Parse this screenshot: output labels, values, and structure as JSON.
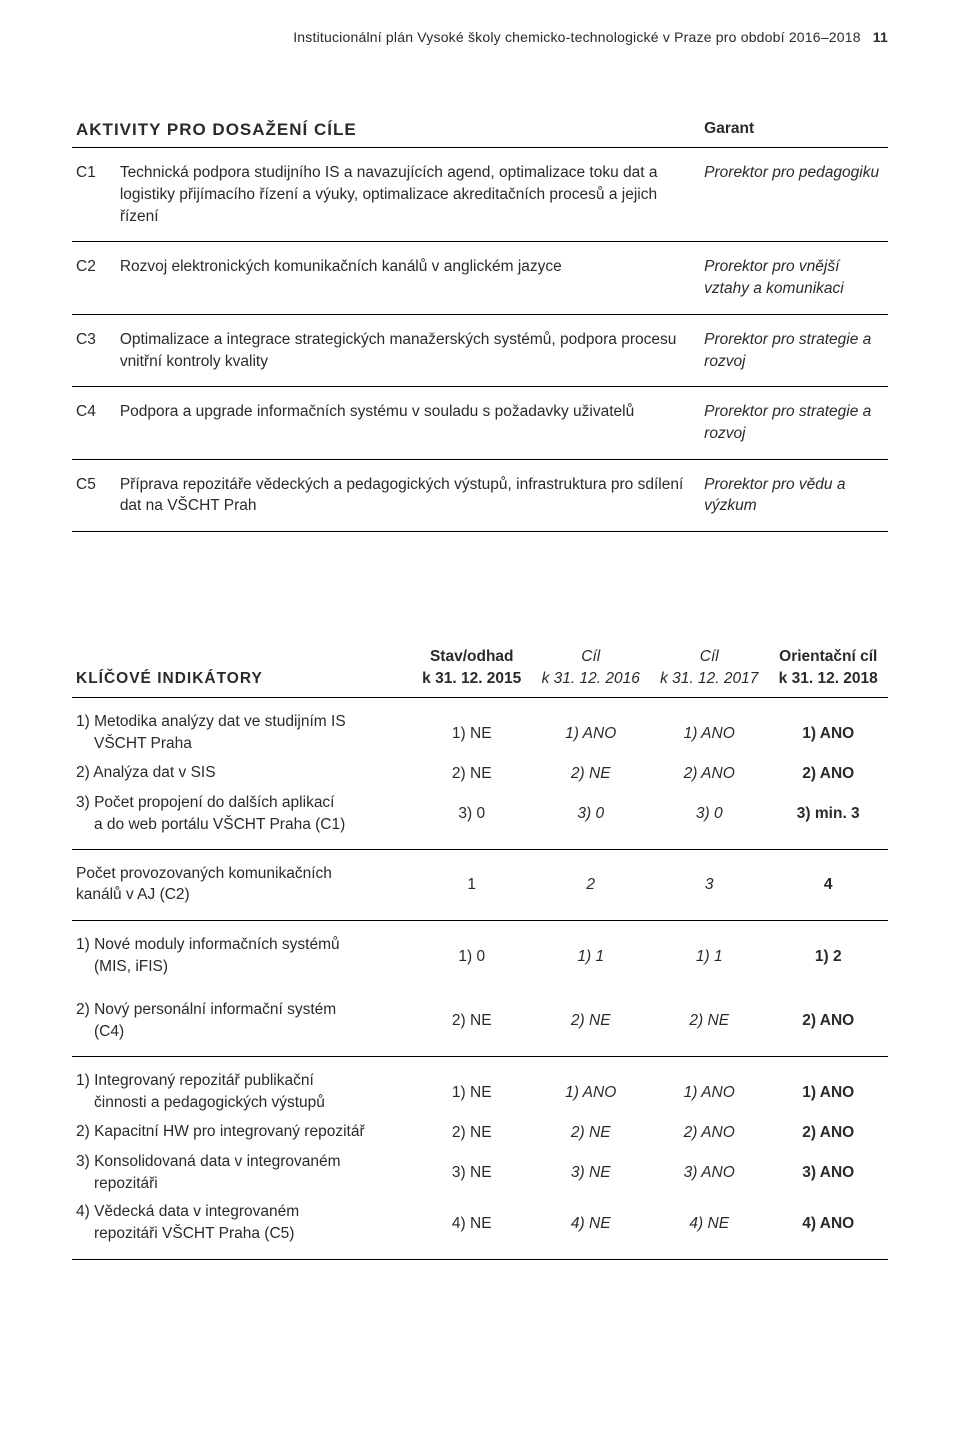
{
  "header": {
    "doc_title": "Institucionální plán Vysoké školy chemicko-technologické v Praze pro období 2016–2018",
    "page_number": "11"
  },
  "activities": {
    "title": "AKTIVITY PRO DOSAŽENÍ CÍLE",
    "garant_header": "Garant",
    "rows": [
      {
        "code": "C1",
        "desc": "Technická podpora studijního IS a navazujících agend, optimalizace toku dat a logistiky přijímacího řízení a výuky, optimalizace akreditačních procesů a jejich řízení",
        "garant": "Prorektor pro pedagogiku"
      },
      {
        "code": "C2",
        "desc": "Rozvoj elektronických komunikačních kanálů v anglickém jazyce",
        "garant": "Prorektor pro vnější vztahy a komunikaci"
      },
      {
        "code": "C3",
        "desc": "Optimalizace a integrace strategických manažerských systémů, podpora procesu vnitřní kontroly kvality",
        "garant": "Prorektor pro strategie a rozvoj"
      },
      {
        "code": "C4",
        "desc": "Podpora a upgrade informačních systému v souladu s požadavky uživatelů",
        "garant": "Prorektor pro strategie a rozvoj"
      },
      {
        "code": "C5",
        "desc": "Příprava repozitáře vědeckých a pedagogických výstupů, infrastruktura pro sdílení dat na VŠCHT Prah",
        "garant": "Prorektor pro vědu a výzkum"
      }
    ]
  },
  "indicators": {
    "title": "KLÍČOVÉ INDIKÁTORY",
    "cols": [
      {
        "top": "Stav/odhad",
        "bottom": "k 31. 12. 2015"
      },
      {
        "top": "Cíl",
        "bottom": "k 31. 12. 2016"
      },
      {
        "top": "Cíl",
        "bottom": "k 31. 12. 2017"
      },
      {
        "top": "Orientační cíl",
        "bottom": "k 31. 12. 2018"
      }
    ],
    "groups": [
      {
        "label_rows": [
          {
            "label": "1) Metodika analýzy dat ve studijním IS",
            "sub": "VŠCHT Praha",
            "v": [
              "1) NE",
              "1) ANO",
              "1) ANO",
              "1) ANO"
            ]
          },
          {
            "label": "2) Analýza dat v SIS",
            "v": [
              "2) NE",
              "2) NE",
              "2) ANO",
              "2) ANO"
            ]
          },
          {
            "label": "3) Počet propojení do dalších aplikací",
            "sub": "a do web portálu VŠCHT Praha (C1)",
            "v": [
              "3) 0",
              "3) 0",
              "3) 0",
              "3) min. 3"
            ]
          }
        ]
      },
      {
        "label_rows": [
          {
            "label": "Počet provozovaných komunikačních",
            "sub2": "kanálů v AJ (C2)",
            "v": [
              "1",
              "2",
              "3",
              "4"
            ]
          }
        ]
      },
      {
        "label_rows": [
          {
            "label": "1) Nové moduly informačních systémů",
            "sub": "(MIS, iFIS)",
            "v": [
              "1) 0",
              "1) 1",
              "1) 1",
              "1) 2"
            ],
            "gap": true
          },
          {
            "label": "2) Nový personální informační systém",
            "sub": "(C4)",
            "v": [
              "2) NE",
              "2) NE",
              "2) NE",
              "2) ANO"
            ]
          }
        ]
      },
      {
        "label_rows": [
          {
            "label": "1) Integrovaný repozitář publikační",
            "sub": "činnosti a pedagogických výstupů",
            "v": [
              "1) NE",
              "1) ANO",
              "1) ANO",
              "1) ANO"
            ]
          },
          {
            "label": "2) Kapacitní HW pro integrovaný repozitář",
            "v": [
              "2) NE",
              "2) NE",
              "2) ANO",
              "2) ANO"
            ]
          },
          {
            "label": "3) Konsolidovaná data v integrovaném",
            "sub": "repozitáři",
            "v": [
              "3) NE",
              "3) NE",
              "3) ANO",
              "3) ANO"
            ]
          },
          {
            "label": "4) Vědecká data v integrovaném",
            "sub": "repozitáři VŠCHT Praha (C5)",
            "v": [
              "4) NE",
              "4) NE",
              "4) NE",
              "4) ANO"
            ]
          }
        ]
      }
    ]
  }
}
